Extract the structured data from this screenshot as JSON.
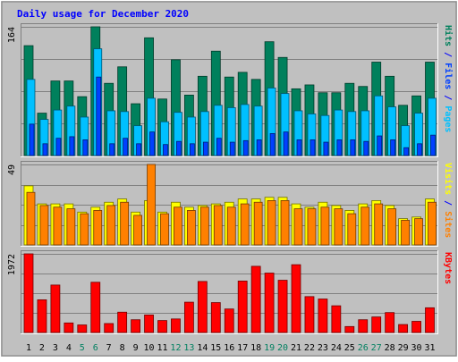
{
  "chart_data": {
    "type": "bar",
    "title": "Daily usage for December 2020",
    "categories": [
      "1",
      "2",
      "3",
      "4",
      "5",
      "6",
      "7",
      "8",
      "9",
      "10",
      "11",
      "12",
      "13",
      "14",
      "15",
      "16",
      "17",
      "18",
      "19",
      "20",
      "21",
      "22",
      "23",
      "24",
      "25",
      "26",
      "27",
      "28",
      "29",
      "30",
      "31"
    ],
    "weekend_categories": [
      "5",
      "6",
      "12",
      "13",
      "19",
      "20",
      "26",
      "27"
    ],
    "panels": [
      {
        "name": "hits-files-pages",
        "max_label": "164",
        "ylim": [
          0,
          164
        ],
        "grid": true,
        "right_legend": [
          {
            "text": "Pages",
            "color": "#00c0ff"
          },
          {
            "text": " / ",
            "color": "#0000ff"
          },
          {
            "text": "Files",
            "color": "#0040ff"
          },
          {
            "text": " / ",
            "color": "#0000ff"
          },
          {
            "text": "Hits",
            "color": "#00805c"
          }
        ],
        "series": [
          {
            "name": "Hits",
            "color": "#00805c",
            "values": [
              140,
              54,
              95,
              95,
              75,
              164,
              92,
              113,
              66,
              150,
              72,
              122,
              77,
              101,
              133,
              100,
              106,
              97,
              145,
              125,
              85,
              90,
              80,
              80,
              92,
              88,
              119,
              101,
              64,
              76,
              119
            ]
          },
          {
            "name": "Files",
            "color": "#00c0ff",
            "values": [
              97,
              46,
              58,
              63,
              49,
              136,
              57,
              56,
              38,
              73,
              43,
              55,
              49,
              56,
              64,
              61,
              65,
              63,
              86,
              79,
              57,
              53,
              51,
              58,
              56,
              57,
              76,
              62,
              38,
              54,
              73
            ]
          },
          {
            "name": "Pages",
            "color": "#0040ff",
            "values": [
              40,
              15,
              22,
              24,
              20,
              100,
              15,
              22,
              15,
              30,
              14,
              18,
              15,
              17,
              22,
              17,
              19,
              20,
              28,
              30,
              20,
              20,
              17,
              20,
              20,
              18,
              25,
              20,
              10,
              15,
              26
            ]
          }
        ]
      },
      {
        "name": "visits-sites",
        "max_label": "49",
        "ylim": [
          0,
          49
        ],
        "grid": true,
        "right_legend": [
          {
            "text": "Sites",
            "color": "#ff8000"
          },
          {
            "text": " / ",
            "color": "#0000ff"
          },
          {
            "text": "Visits",
            "color": "#ffff00"
          }
        ],
        "series": [
          {
            "name": "Visits",
            "color": "#ffff00",
            "values": [
              36,
              25,
              25,
              25,
              20,
              23,
              26,
              28,
              20,
              27,
              20,
              26,
              23,
              24,
              25,
              26,
              28,
              28,
              29,
              29,
              25,
              23,
              26,
              24,
              21,
              25,
              27,
              24,
              16,
              17,
              28
            ]
          },
          {
            "name": "Sites",
            "color": "#ff8000",
            "values": [
              32,
              24,
              23,
              22,
              19,
              21,
              24,
              26,
              18,
              49,
              19,
              23,
              21,
              23,
              24,
              23,
              25,
              26,
              27,
              27,
              22,
              22,
              23,
              22,
              19,
              23,
              25,
              22,
              15,
              16,
              26
            ]
          }
        ]
      },
      {
        "name": "kbytes",
        "max_label": "1972",
        "ylim": [
          0,
          1972
        ],
        "grid": true,
        "right_legend": [
          {
            "text": "KBytes",
            "color": "#ff0000"
          }
        ],
        "series": [
          {
            "name": "KBytes",
            "color": "#ff0000",
            "values": [
              1972,
              820,
              1190,
              240,
              190,
              1260,
              225,
              510,
              320,
              440,
              300,
              340,
              760,
              1280,
              750,
              590,
              1290,
              1660,
              1490,
              1310,
              1700,
              900,
              840,
              670,
              150,
              320,
              390,
              500,
              200,
              280,
              620
            ]
          }
        ]
      }
    ]
  }
}
